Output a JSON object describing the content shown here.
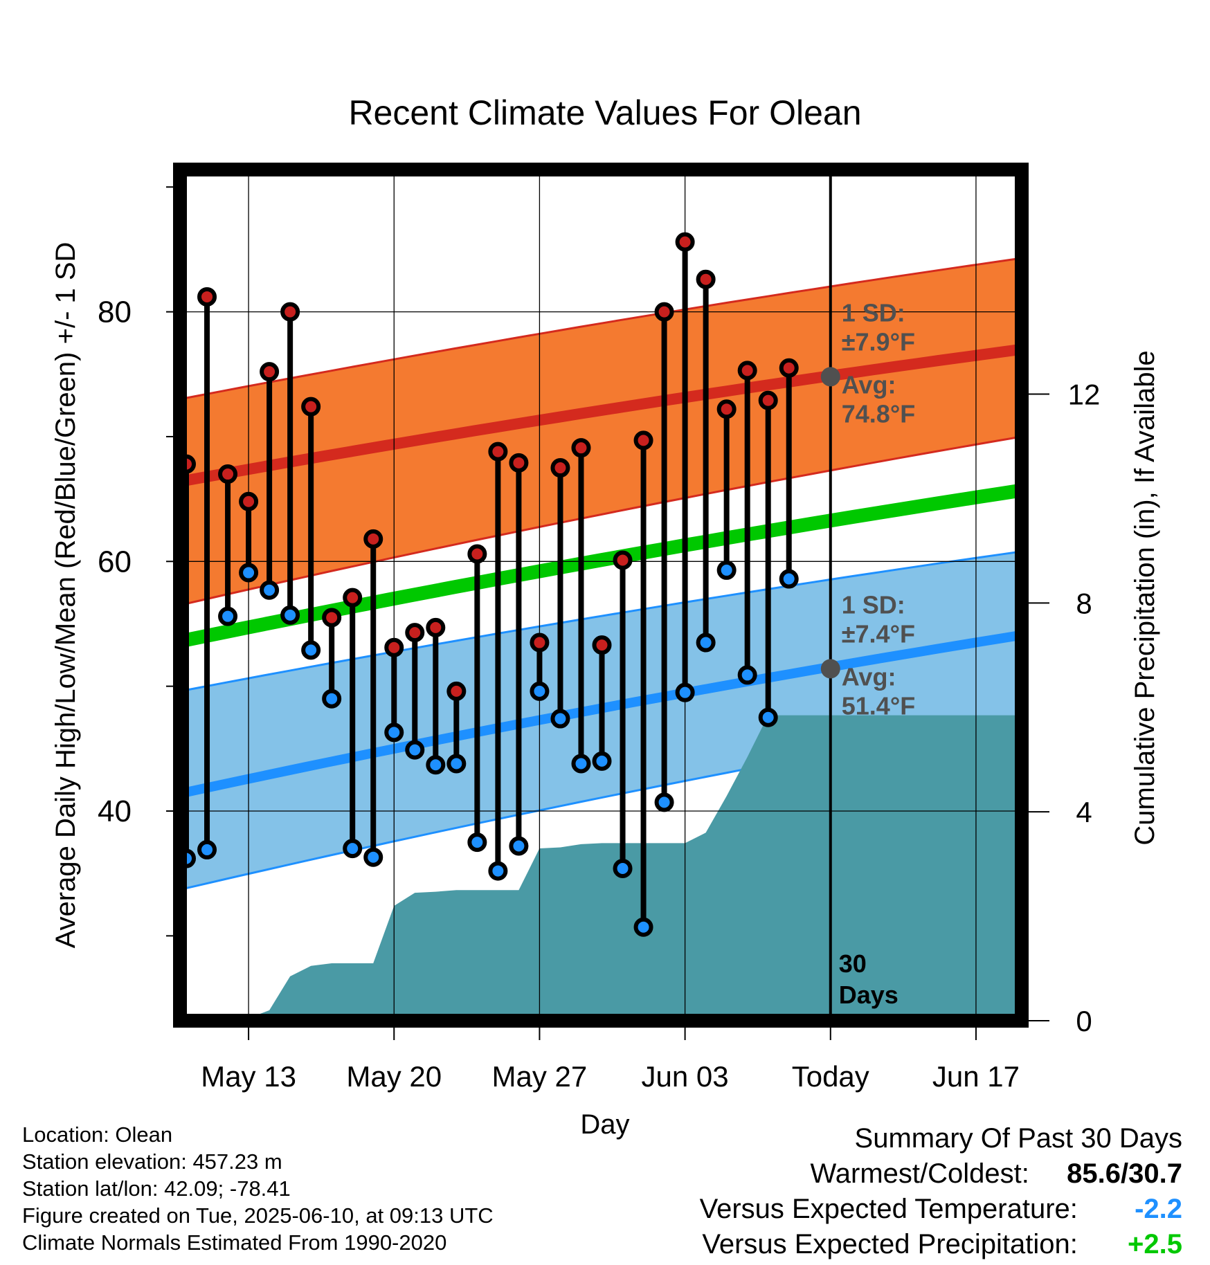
{
  "chart_data": {
    "type": "line",
    "title": "Recent Climate Values For Olean",
    "xlabel": "Day",
    "ylabel": "Average Daily High/Low/Mean (Red/Blue/Green) +/- 1 SD",
    "y2label": "Cumulative Precipitation (in), If Available",
    "x_ticks": [
      {
        "day": 3,
        "label": "May 13"
      },
      {
        "day": 10,
        "label": "May 20"
      },
      {
        "day": 17,
        "label": "May 27"
      },
      {
        "day": 24,
        "label": "Jun 03"
      },
      {
        "day": 31,
        "label": "Today"
      },
      {
        "day": 38,
        "label": "Jun 17"
      }
    ],
    "x_range_days": [
      -0.3,
      40.2
    ],
    "x_origin_date": "May 10",
    "y_ticks": [
      40,
      60,
      80
    ],
    "y_range": [
      23.2,
      91.4
    ],
    "y2_ticks": [
      0,
      4,
      8,
      12
    ],
    "y2_range": [
      0,
      16.3
    ],
    "grid": true,
    "today_day": 31,
    "today_label_lines": [
      "30",
      "Days"
    ],
    "normals": {
      "high_mean": {
        "start": 66.4,
        "end": 77.0
      },
      "high_sd_upper": {
        "start": 73.0,
        "end": 84.3
      },
      "high_sd_lower": {
        "start": 56.5,
        "end": 70.0
      },
      "mean": {
        "start": 53.6,
        "end": 65.7
      },
      "low_mean": {
        "start": 41.4,
        "end": 54.1
      },
      "low_sd_upper": {
        "start": 49.6,
        "end": 60.8
      },
      "low_sd_lower": {
        "start": 33.7,
        "end": 47.4
      }
    },
    "annotations": {
      "high": {
        "sd_label": "1 SD:",
        "sd_value": "±7.9°F",
        "avg_label": "Avg:",
        "avg_value": "74.8°F",
        "avg": 74.8
      },
      "low": {
        "sd_label": "1 SD:",
        "sd_value": "±7.4°F",
        "avg_label": "Avg:",
        "avg_value": "51.4°F",
        "avg": 51.4
      }
    },
    "daily": [
      {
        "day": 0,
        "high": 67.8,
        "low": 36.2
      },
      {
        "day": 1,
        "high": 81.2,
        "low": 36.9
      },
      {
        "day": 2,
        "high": 67.0,
        "low": 55.6
      },
      {
        "day": 3,
        "high": 64.8,
        "low": 59.1
      },
      {
        "day": 4,
        "high": 75.2,
        "low": 57.7
      },
      {
        "day": 5,
        "high": 80.0,
        "low": 55.7
      },
      {
        "day": 6,
        "high": 72.4,
        "low": 52.9
      },
      {
        "day": 7,
        "high": 55.5,
        "low": 49.0
      },
      {
        "day": 8,
        "high": 57.1,
        "low": 37.0
      },
      {
        "day": 9,
        "high": 61.8,
        "low": 36.3
      },
      {
        "day": 10,
        "high": 53.1,
        "low": 46.3
      },
      {
        "day": 11,
        "high": 54.3,
        "low": 44.9
      },
      {
        "day": 12,
        "high": 54.7,
        "low": 43.7
      },
      {
        "day": 13,
        "high": 49.6,
        "low": 43.8
      },
      {
        "day": 14,
        "high": 60.6,
        "low": 37.5
      },
      {
        "day": 15,
        "high": 68.8,
        "low": 35.2
      },
      {
        "day": 16,
        "high": 67.9,
        "low": 37.2
      },
      {
        "day": 17,
        "high": 53.5,
        "low": 49.6
      },
      {
        "day": 18,
        "high": 67.5,
        "low": 47.4
      },
      {
        "day": 19,
        "high": 69.1,
        "low": 43.8
      },
      {
        "day": 20,
        "high": 53.3,
        "low": 44.0
      },
      {
        "day": 21,
        "high": 60.1,
        "low": 35.4
      },
      {
        "day": 22,
        "high": 69.7,
        "low": 30.7
      },
      {
        "day": 23,
        "high": 80.0,
        "low": 40.7
      },
      {
        "day": 24,
        "high": 85.6,
        "low": 49.5
      },
      {
        "day": 25,
        "high": 82.6,
        "low": 53.5
      },
      {
        "day": 26,
        "high": 72.2,
        "low": 59.3
      },
      {
        "day": 27,
        "high": 75.3,
        "low": 50.9
      },
      {
        "day": 28,
        "high": 72.9,
        "low": 47.5
      },
      {
        "day": 29,
        "high": 75.5,
        "low": 58.6
      }
    ],
    "precip_cumulative": [
      {
        "day": 2,
        "value": 0.0
      },
      {
        "day": 3,
        "value": 0.05
      },
      {
        "day": 4,
        "value": 0.2
      },
      {
        "day": 5,
        "value": 0.85
      },
      {
        "day": 6,
        "value": 1.05
      },
      {
        "day": 7,
        "value": 1.1
      },
      {
        "day": 8,
        "value": 1.1
      },
      {
        "day": 9,
        "value": 1.1
      },
      {
        "day": 10,
        "value": 2.2
      },
      {
        "day": 11,
        "value": 2.45
      },
      {
        "day": 12,
        "value": 2.47
      },
      {
        "day": 13,
        "value": 2.5
      },
      {
        "day": 14,
        "value": 2.5
      },
      {
        "day": 15,
        "value": 2.5
      },
      {
        "day": 16,
        "value": 2.5
      },
      {
        "day": 17,
        "value": 3.3
      },
      {
        "day": 18,
        "value": 3.32
      },
      {
        "day": 19,
        "value": 3.38
      },
      {
        "day": 20,
        "value": 3.4
      },
      {
        "day": 21,
        "value": 3.4
      },
      {
        "day": 22,
        "value": 3.4
      },
      {
        "day": 23,
        "value": 3.4
      },
      {
        "day": 24,
        "value": 3.4
      },
      {
        "day": 25,
        "value": 3.6
      },
      {
        "day": 26,
        "value": 4.3
      },
      {
        "day": 27,
        "value": 5.05
      },
      {
        "day": 28,
        "value": 5.85
      },
      {
        "day": 29,
        "value": 5.85
      },
      {
        "day": 31,
        "value": 5.85
      },
      {
        "day": 40.2,
        "value": 5.85
      }
    ],
    "colors": {
      "high_band": "#f47a30",
      "high_edge": "#d42a1e",
      "high_line": "#d42a1e",
      "low_band": "#84c2e8",
      "low_edge": "#1e90ff",
      "low_line": "#1e90ff",
      "mean_line": "#00c800",
      "precip_fill": "#4a9aa5",
      "high_dot": "#c8201e",
      "low_dot": "#1e90ff",
      "annotation_text": "#505050",
      "avg_dot": "#505050"
    }
  },
  "footer": {
    "location": "Location: Olean",
    "elevation": "Station elevation: 457.23 m",
    "latlon": "Station lat/lon: 42.09; -78.41",
    "created": "Figure created on Tue, 2025-06-10, at 09:13 UTC",
    "normals": "Climate Normals Estimated From 1990-2020"
  },
  "summary": {
    "title": "Summary Of Past 30 Days",
    "warm_cold_label": "Warmest/Coldest:",
    "warm_cold_value": "85.6/30.7",
    "temp_label": "Versus Expected Temperature:",
    "temp_value": "-2.2",
    "temp_color": "#1e90ff",
    "precip_label": "Versus Expected Precipitation:",
    "precip_value": "+2.5",
    "precip_color": "#00c800"
  }
}
